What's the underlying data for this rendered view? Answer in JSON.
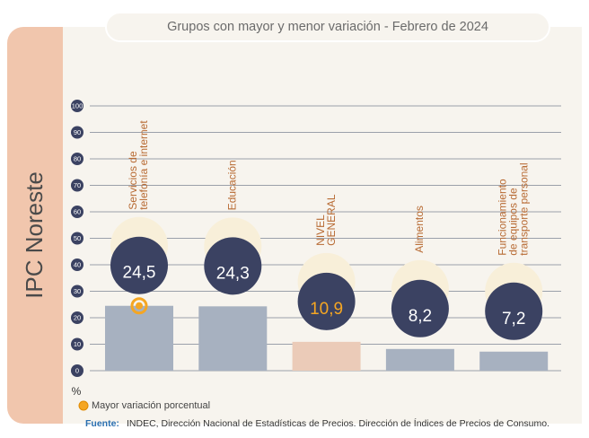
{
  "chart_data": {
    "type": "bar",
    "title": "Grupos con mayor y menor variación - Febrero de 2024",
    "side_title": "IPC Noreste",
    "unit_label": "%",
    "categories": [
      [
        "Servicios de",
        "telefonía e internet"
      ],
      [
        "Educación"
      ],
      [
        "NIVEL",
        "GENERAL"
      ],
      [
        "Alimentos"
      ],
      [
        "Funcionamiento",
        "de equipos de",
        "transporte personal"
      ]
    ],
    "values": [
      24.5,
      24.3,
      10.9,
      8.2,
      7.2
    ],
    "value_labels": [
      "24,5",
      "24,3",
      "10,9",
      "8,2",
      "7,2"
    ],
    "colors": [
      "#a7b1c0",
      "#a7b1c0",
      "#ebcbb8",
      "#a7b1c0",
      "#a7b1c0"
    ],
    "label_colors": [
      "#ffffff",
      "#ffffff",
      "#f5a623",
      "#ffffff",
      "#ffffff"
    ],
    "ylim": [
      0,
      100
    ],
    "yticks": [
      0,
      10,
      20,
      30,
      40,
      50,
      60,
      70,
      80,
      90,
      100
    ],
    "grid": true,
    "legend": {
      "label": "Mayor variación porcentual",
      "color": "#f5a623"
    },
    "source_label": "Fuente:",
    "source": "INDEC, Dirección Nacional de Estadísticas de Precios. Dirección de Índices de Precios de Consumo."
  }
}
